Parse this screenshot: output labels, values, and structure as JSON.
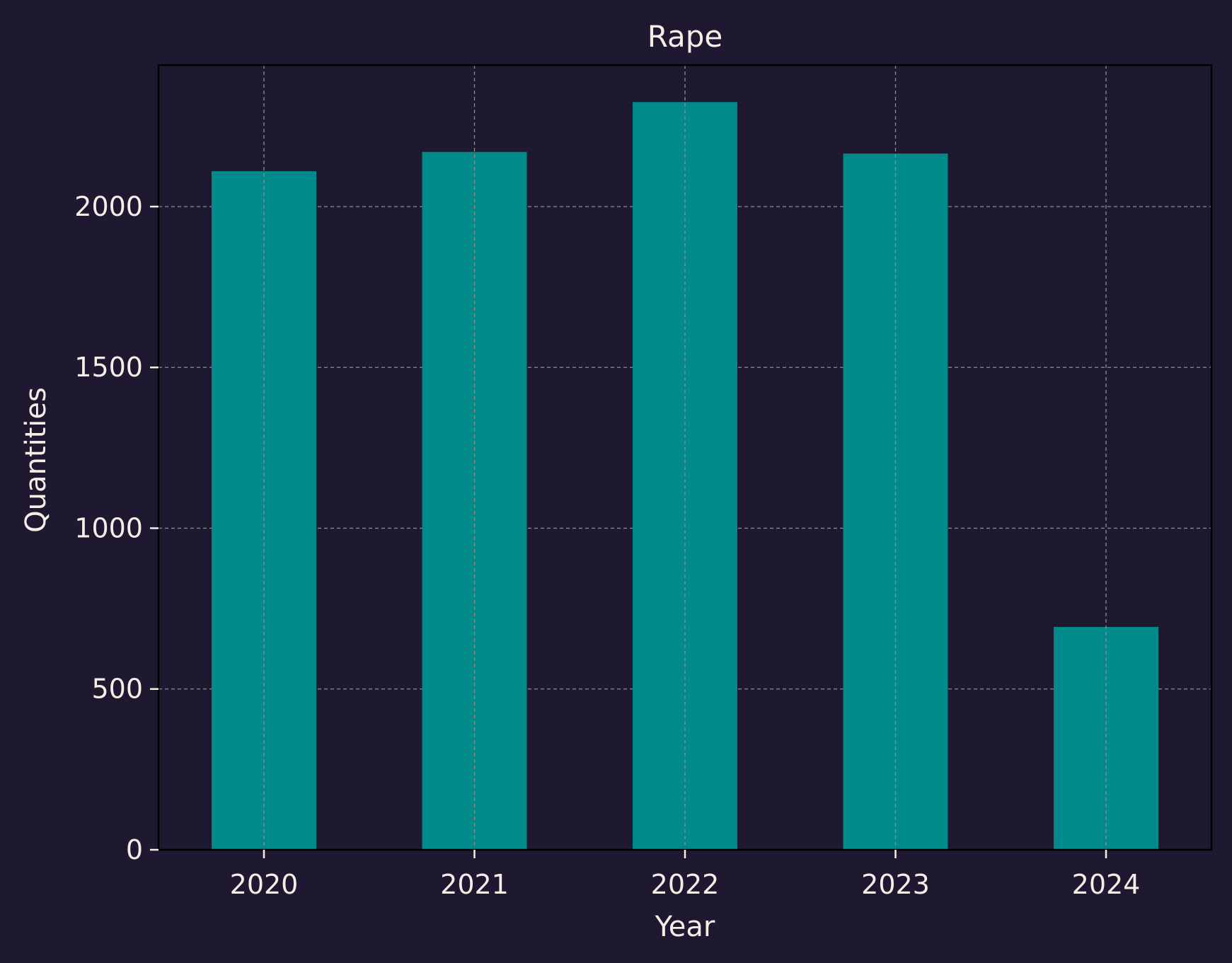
{
  "colors": {
    "background": "#1e1930",
    "bar": "#008b8a",
    "text": "#f4eee6",
    "grid": "#8c8c8c",
    "axes": "#000000"
  },
  "chart_data": {
    "type": "bar",
    "title": "Rape",
    "xlabel": "Year",
    "ylabel": "Quantities",
    "categories": [
      "2020",
      "2021",
      "2022",
      "2023",
      "2024"
    ],
    "values": [
      2110,
      2170,
      2325,
      2165,
      693
    ],
    "ylim": [
      0,
      2440
    ],
    "yticks": [
      0,
      500,
      1000,
      1500,
      2000
    ],
    "grid": true,
    "grid_style": "dashed",
    "legend": "none"
  }
}
